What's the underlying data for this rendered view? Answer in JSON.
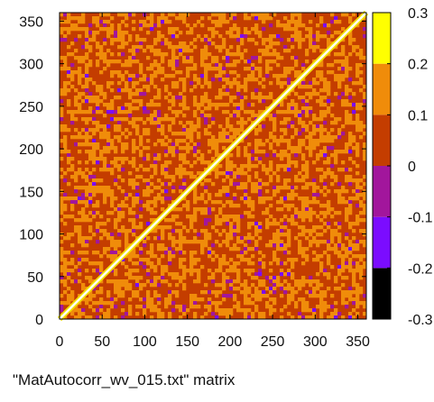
{
  "chart_data": {
    "type": "heatmap",
    "title": "",
    "xlabel": "",
    "ylabel": "",
    "xlim": [
      0,
      360
    ],
    "ylim": [
      0,
      360
    ],
    "xticks": [
      "0",
      "50",
      "100",
      "150",
      "200",
      "250",
      "300",
      "350"
    ],
    "yticks": [
      "0",
      "50",
      "100",
      "150",
      "200",
      "250",
      "300",
      "350"
    ],
    "colorbar": {
      "range": [
        -0.3,
        0.3
      ],
      "ticks": [
        "-0.3",
        "-0.2",
        "-0.1",
        "0",
        "0.1",
        "0.2",
        "0.3"
      ],
      "bands": [
        {
          "from": -0.3,
          "to": -0.2,
          "color": "#000000"
        },
        {
          "from": -0.2,
          "to": -0.1,
          "color": "#7b0cff"
        },
        {
          "from": -0.1,
          "to": 0.0,
          "color": "#a2169c"
        },
        {
          "from": 0.0,
          "to": 0.1,
          "color": "#c43d00"
        },
        {
          "from": 0.1,
          "to": 0.2,
          "color": "#f08c0a"
        },
        {
          "from": 0.2,
          "to": 0.3,
          "color": "#ffff00"
        }
      ]
    },
    "diagonal_value": 1.0,
    "diagonal_color": "#ffffff",
    "grid": false,
    "legend": "\"MatAutocorr_wv_015.txt\" matrix",
    "legend_placement": "bottom-left"
  }
}
